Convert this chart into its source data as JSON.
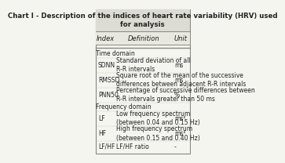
{
  "title": "Chart I - Description of the indices of heart rate variability (HRV) used\nfor analysis",
  "col_headers": [
    "Index",
    "Definition",
    "Unit"
  ],
  "sections": [
    {
      "section_label": "Time domain",
      "rows": [
        {
          "index": "SDNN",
          "definition": "Standard deviation of all\nR-R intervals",
          "unit": "ms"
        },
        {
          "index": "RMSSD",
          "definition": "Square root of the mean of the successive\ndifferences between adjacent R-R intervals",
          "unit": "ms"
        },
        {
          "index": "PNN50",
          "definition": "Percentage of successive differences between\nR-R intervals greater than 50 ms",
          "unit": "%"
        }
      ]
    },
    {
      "section_label": "Frequency domain",
      "rows": [
        {
          "index": "LF",
          "definition": "Low frequency spectrum\n(between 0.04 and 0.15 Hz)",
          "unit": "ms²"
        },
        {
          "index": "HF",
          "definition": "High frequency spectrum\n(between 0.15 and 0.40 Hz)",
          "unit": "ms²"
        },
        {
          "index": "LF/HF",
          "definition": "LF/HF ratio",
          "unit": "-"
        }
      ]
    }
  ],
  "bg_color": "#f5f5f0",
  "header_bg": "#e8e8e0",
  "title_bg": "#dcdcd4",
  "border_color": "#888880",
  "text_color": "#222222",
  "font_size": 5.5,
  "title_font_size": 6.2,
  "header_font_size": 6.0
}
